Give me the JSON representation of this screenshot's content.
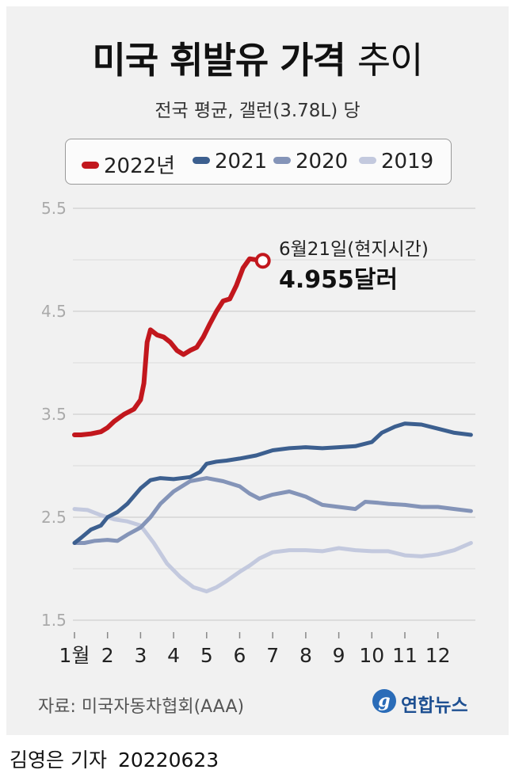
{
  "title": {
    "main": "미국 휘발유 가격",
    "suffix": "추이"
  },
  "subtitle": "전국 평균, 갤런(3.78L) 당",
  "legend": [
    {
      "label": "2022년",
      "color": "#c2171d"
    },
    {
      "label": "2021",
      "color": "#3c5f8f"
    },
    {
      "label": "2020",
      "color": "#8494b8"
    },
    {
      "label": "2019",
      "color": "#c3c9de"
    }
  ],
  "annotation": {
    "date": "6월21일(현지시간)",
    "value": "4.955",
    "unit": "달러"
  },
  "source": "자료: 미국자동차협회(AAA)",
  "logo": {
    "icon": "g",
    "text": "연합뉴스"
  },
  "footer": {
    "reporter": "김영은 기자",
    "date": "20220623"
  },
  "chart_data": {
    "type": "line",
    "title": "미국 휘발유 가격 추이",
    "ylim": [
      1.5,
      5.5
    ],
    "yticks": [
      "5.5",
      "4.5",
      "3.5",
      "2.5",
      "1.5"
    ],
    "xticks": [
      "1월",
      "2",
      "3",
      "4",
      "5",
      "6",
      "7",
      "8",
      "9",
      "10",
      "11",
      "12"
    ],
    "grid": true,
    "legend_position": "top",
    "series": [
      {
        "name": "2022년",
        "color": "#c2171d",
        "points": [
          [
            1.0,
            3.3
          ],
          [
            1.2,
            3.3
          ],
          [
            1.5,
            3.31
          ],
          [
            1.8,
            3.33
          ],
          [
            2.0,
            3.37
          ],
          [
            2.2,
            3.43
          ],
          [
            2.5,
            3.5
          ],
          [
            2.8,
            3.55
          ],
          [
            3.0,
            3.64
          ],
          [
            3.1,
            3.8
          ],
          [
            3.2,
            4.2
          ],
          [
            3.3,
            4.32
          ],
          [
            3.5,
            4.27
          ],
          [
            3.7,
            4.25
          ],
          [
            3.9,
            4.2
          ],
          [
            4.1,
            4.12
          ],
          [
            4.3,
            4.08
          ],
          [
            4.5,
            4.12
          ],
          [
            4.7,
            4.15
          ],
          [
            4.9,
            4.25
          ],
          [
            5.1,
            4.38
          ],
          [
            5.3,
            4.5
          ],
          [
            5.5,
            4.6
          ],
          [
            5.7,
            4.62
          ],
          [
            5.9,
            4.75
          ],
          [
            6.1,
            4.92
          ],
          [
            6.3,
            5.01
          ],
          [
            6.5,
            5.0
          ],
          [
            6.7,
            4.96
          ]
        ]
      },
      {
        "name": "2021",
        "color": "#3c5f8f",
        "points": [
          [
            1.0,
            2.25
          ],
          [
            1.2,
            2.3
          ],
          [
            1.5,
            2.38
          ],
          [
            1.8,
            2.42
          ],
          [
            2.0,
            2.5
          ],
          [
            2.3,
            2.55
          ],
          [
            2.6,
            2.63
          ],
          [
            3.0,
            2.78
          ],
          [
            3.3,
            2.86
          ],
          [
            3.6,
            2.88
          ],
          [
            4.0,
            2.87
          ],
          [
            4.5,
            2.89
          ],
          [
            4.8,
            2.94
          ],
          [
            5.0,
            3.02
          ],
          [
            5.3,
            3.04
          ],
          [
            5.6,
            3.05
          ],
          [
            6.0,
            3.07
          ],
          [
            6.5,
            3.1
          ],
          [
            7.0,
            3.15
          ],
          [
            7.5,
            3.17
          ],
          [
            8.0,
            3.18
          ],
          [
            8.5,
            3.17
          ],
          [
            9.0,
            3.18
          ],
          [
            9.5,
            3.19
          ],
          [
            10.0,
            3.23
          ],
          [
            10.3,
            3.32
          ],
          [
            10.7,
            3.38
          ],
          [
            11.0,
            3.41
          ],
          [
            11.5,
            3.4
          ],
          [
            12.0,
            3.36
          ],
          [
            12.5,
            3.32
          ],
          [
            13.0,
            3.3
          ]
        ]
      },
      {
        "name": "2020",
        "color": "#8494b8",
        "points": [
          [
            1.0,
            2.25
          ],
          [
            1.3,
            2.25
          ],
          [
            1.6,
            2.27
          ],
          [
            2.0,
            2.28
          ],
          [
            2.3,
            2.27
          ],
          [
            2.6,
            2.33
          ],
          [
            3.0,
            2.4
          ],
          [
            3.3,
            2.5
          ],
          [
            3.6,
            2.63
          ],
          [
            4.0,
            2.75
          ],
          [
            4.5,
            2.85
          ],
          [
            5.0,
            2.88
          ],
          [
            5.5,
            2.85
          ],
          [
            6.0,
            2.8
          ],
          [
            6.3,
            2.73
          ],
          [
            6.6,
            2.68
          ],
          [
            7.0,
            2.72
          ],
          [
            7.5,
            2.75
          ],
          [
            8.0,
            2.7
          ],
          [
            8.5,
            2.62
          ],
          [
            9.0,
            2.6
          ],
          [
            9.5,
            2.58
          ],
          [
            9.8,
            2.65
          ],
          [
            10.2,
            2.64
          ],
          [
            10.5,
            2.63
          ],
          [
            11.0,
            2.62
          ],
          [
            11.5,
            2.6
          ],
          [
            12.0,
            2.6
          ],
          [
            12.5,
            2.58
          ],
          [
            13.0,
            2.56
          ]
        ]
      },
      {
        "name": "2019",
        "color": "#c3c9de",
        "points": [
          [
            1.0,
            2.58
          ],
          [
            1.4,
            2.57
          ],
          [
            1.8,
            2.52
          ],
          [
            2.2,
            2.48
          ],
          [
            2.6,
            2.46
          ],
          [
            3.0,
            2.42
          ],
          [
            3.4,
            2.25
          ],
          [
            3.8,
            2.05
          ],
          [
            4.2,
            1.92
          ],
          [
            4.6,
            1.82
          ],
          [
            5.0,
            1.78
          ],
          [
            5.3,
            1.82
          ],
          [
            5.6,
            1.88
          ],
          [
            6.0,
            1.97
          ],
          [
            6.3,
            2.03
          ],
          [
            6.6,
            2.1
          ],
          [
            7.0,
            2.16
          ],
          [
            7.5,
            2.18
          ],
          [
            8.0,
            2.18
          ],
          [
            8.5,
            2.17
          ],
          [
            9.0,
            2.2
          ],
          [
            9.5,
            2.18
          ],
          [
            10.0,
            2.17
          ],
          [
            10.5,
            2.17
          ],
          [
            11.0,
            2.13
          ],
          [
            11.5,
            2.12
          ],
          [
            12.0,
            2.14
          ],
          [
            12.5,
            2.18
          ],
          [
            13.0,
            2.25
          ]
        ]
      }
    ]
  }
}
